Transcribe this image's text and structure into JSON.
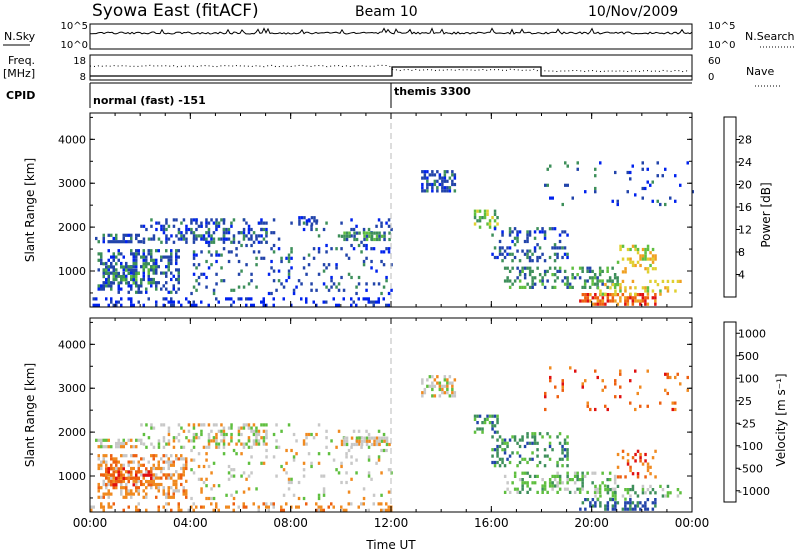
{
  "header": {
    "station": "Syowa East (fitACF)",
    "beam": "Beam 10",
    "date": "10/Nov/2009"
  },
  "noise_panel": {
    "left_label": "N.Sky",
    "right_label": "N.Search",
    "left_ticks": [
      "10^5",
      "10^0"
    ],
    "right_ticks": [
      "10^5",
      "10^0"
    ]
  },
  "freq_panel": {
    "left_label_line1": "Freq.",
    "left_label_line2": "[MHz]",
    "right_label": "Nave",
    "left_ticks": [
      "18",
      "8"
    ],
    "right_ticks": [
      "60",
      "0"
    ]
  },
  "cpid_panel": {
    "label": "CPID",
    "modes": [
      {
        "name": "normal (fast) -151",
        "start_hour": 0
      },
      {
        "name": "themis 3300",
        "start_hour": 12
      }
    ]
  },
  "colors": {
    "power": [
      "#0022ee",
      "#2244aa",
      "#3d8f5a",
      "#5fbf3f",
      "#e0d030",
      "#f0a020",
      "#ee6010",
      "#e01010"
    ],
    "velocity": [
      "#e01010",
      "#ee6010",
      "#f08a20",
      "#c8c8c8",
      "#5fbf3f",
      "#3d8f5a",
      "#2244aa"
    ]
  },
  "chart_data": [
    {
      "type": "heatmap",
      "name": "power",
      "ylabel": "Slant Range [km]",
      "xlabel": "Time UT",
      "xlim_hours": [
        0,
        24
      ],
      "ylim_km": [
        180,
        4600
      ],
      "xticks": [
        "00:00",
        "04:00",
        "08:00",
        "12:00",
        "16:00",
        "20:00",
        "00:00"
      ],
      "yticks": [
        1000,
        2000,
        3000,
        4000
      ],
      "colorbar": {
        "label": "Power [dB]",
        "ticks": [
          "4",
          "8",
          "12",
          "16",
          "20",
          "24",
          "28"
        ]
      },
      "echo_regions": [
        {
          "t0": 0.2,
          "t1": 2.0,
          "r0": 1650,
          "r1": 1850,
          "level": 1,
          "density": 0.6
        },
        {
          "t0": 0.3,
          "t1": 3.5,
          "r0": 500,
          "r1": 1500,
          "level": 1,
          "density": 0.45
        },
        {
          "t0": 0.5,
          "t1": 2.5,
          "r0": 700,
          "r1": 1200,
          "level": 2,
          "density": 0.35
        },
        {
          "t0": 2.0,
          "t1": 7.0,
          "r0": 1650,
          "r1": 2200,
          "level": 1,
          "density": 0.35
        },
        {
          "t0": 0.0,
          "t1": 12.0,
          "r0": 250,
          "r1": 400,
          "level": 0,
          "density": 0.25
        },
        {
          "t0": 4.0,
          "t1": 12.0,
          "r0": 500,
          "r1": 2200,
          "level": 1,
          "density": 0.12
        },
        {
          "t0": 10.0,
          "t1": 11.9,
          "r0": 1700,
          "r1": 1900,
          "level": 2,
          "density": 0.7
        },
        {
          "t0": 8.3,
          "t1": 9.0,
          "r0": 2050,
          "r1": 2250,
          "level": 1,
          "density": 0.5
        },
        {
          "t0": 13.2,
          "t1": 14.5,
          "r0": 2800,
          "r1": 3300,
          "level": 1,
          "density": 0.55
        },
        {
          "t0": 15.3,
          "t1": 16.2,
          "r0": 2000,
          "r1": 2400,
          "level": 3,
          "density": 0.5
        },
        {
          "t0": 16.0,
          "t1": 19.0,
          "r0": 1200,
          "r1": 2000,
          "level": 1,
          "density": 0.3
        },
        {
          "t0": 16.5,
          "t1": 21.0,
          "r0": 600,
          "r1": 1100,
          "level": 2,
          "density": 0.35
        },
        {
          "t0": 19.5,
          "t1": 22.5,
          "r0": 250,
          "r1": 500,
          "level": 6,
          "density": 0.5
        },
        {
          "t0": 20.0,
          "t1": 23.5,
          "r0": 500,
          "r1": 800,
          "level": 4,
          "density": 0.3
        },
        {
          "t0": 21.0,
          "t1": 22.5,
          "r0": 1000,
          "r1": 1600,
          "level": 4,
          "density": 0.25
        },
        {
          "t0": 18.0,
          "t1": 24.0,
          "r0": 2500,
          "r1": 3500,
          "level": 1,
          "density": 0.06
        }
      ]
    },
    {
      "type": "heatmap",
      "name": "velocity",
      "ylabel": "Slant Range [km]",
      "xlabel": "Time UT",
      "xlim_hours": [
        0,
        24
      ],
      "ylim_km": [
        180,
        4600
      ],
      "xticks": [
        "00:00",
        "04:00",
        "08:00",
        "12:00",
        "16:00",
        "20:00",
        "00:00"
      ],
      "yticks": [
        1000,
        2000,
        3000,
        4000
      ],
      "colorbar": {
        "label": "Velocity [m s⁻¹]",
        "ticks": [
          "1000",
          "500",
          "100",
          "25",
          "-25",
          "-100",
          "-500",
          "-1000"
        ]
      },
      "echo_regions": [
        {
          "t0": 0.2,
          "t1": 2.0,
          "r0": 1650,
          "r1": 1850,
          "level": 3,
          "density": 0.6
        },
        {
          "t0": 0.3,
          "t1": 3.8,
          "r0": 500,
          "r1": 1500,
          "level": 2,
          "density": 0.5
        },
        {
          "t0": 0.5,
          "t1": 2.5,
          "r0": 700,
          "r1": 1200,
          "level": 1,
          "density": 0.4
        },
        {
          "t0": 2.0,
          "t1": 7.0,
          "r0": 1650,
          "r1": 2200,
          "level": 3,
          "density": 0.3
        },
        {
          "t0": 0.0,
          "t1": 12.0,
          "r0": 250,
          "r1": 400,
          "level": 2,
          "density": 0.25
        },
        {
          "t0": 4.0,
          "t1": 12.0,
          "r0": 500,
          "r1": 2200,
          "level": 3,
          "density": 0.1
        },
        {
          "t0": 10.0,
          "t1": 11.9,
          "r0": 1700,
          "r1": 1900,
          "level": 3,
          "density": 0.7
        },
        {
          "t0": 13.2,
          "t1": 14.5,
          "r0": 2800,
          "r1": 3300,
          "level": 3,
          "density": 0.5
        },
        {
          "t0": 15.3,
          "t1": 16.2,
          "r0": 2000,
          "r1": 2400,
          "level": 5,
          "density": 0.5
        },
        {
          "t0": 16.0,
          "t1": 19.0,
          "r0": 1200,
          "r1": 2000,
          "level": 5,
          "density": 0.3
        },
        {
          "t0": 16.5,
          "t1": 21.0,
          "r0": 600,
          "r1": 1100,
          "level": 4,
          "density": 0.35
        },
        {
          "t0": 19.5,
          "t1": 22.5,
          "r0": 250,
          "r1": 500,
          "level": 6,
          "density": 0.45
        },
        {
          "t0": 20.0,
          "t1": 23.5,
          "r0": 500,
          "r1": 800,
          "level": 4,
          "density": 0.3
        },
        {
          "t0": 21.0,
          "t1": 22.5,
          "r0": 1000,
          "r1": 1600,
          "level": 1,
          "density": 0.25
        },
        {
          "t0": 18.0,
          "t1": 24.0,
          "r0": 2500,
          "r1": 3500,
          "level": 1,
          "density": 0.06
        }
      ]
    }
  ]
}
